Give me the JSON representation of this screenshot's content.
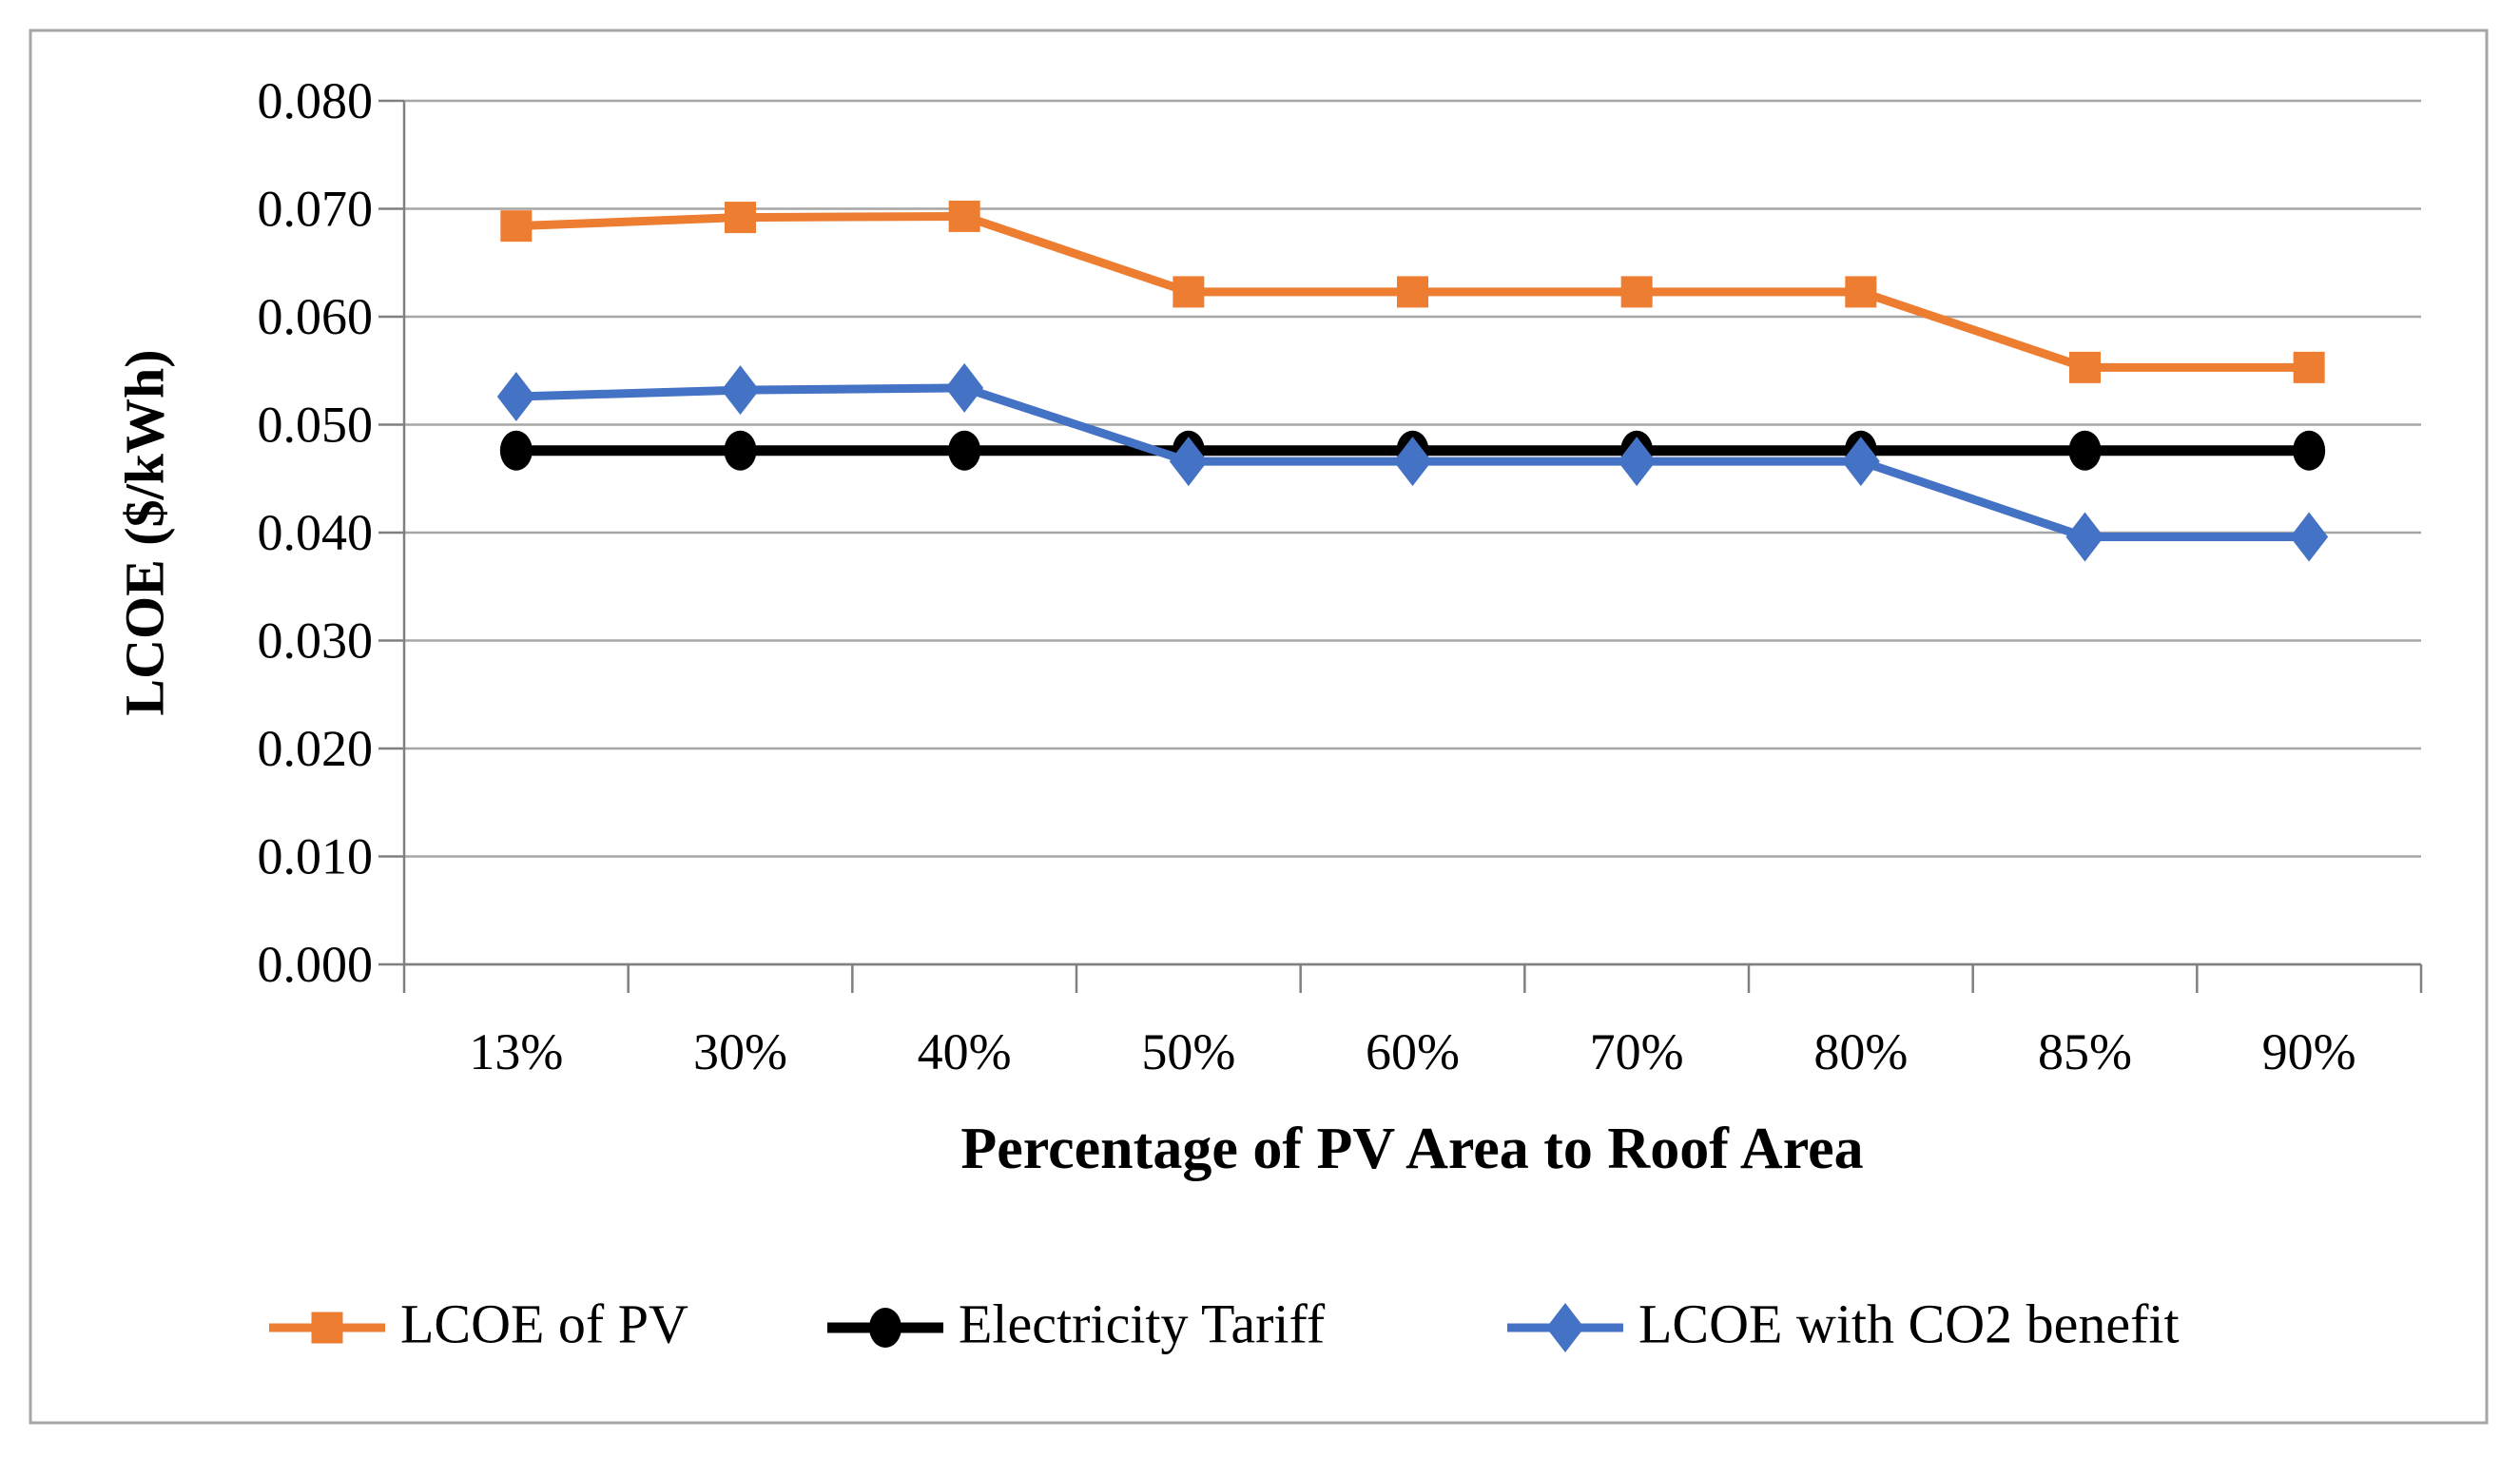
{
  "figure": {
    "background": "#ffffff",
    "border_color": "#a6a6a6",
    "gridline_color": "#a6a6a6",
    "axis_line_color": "#808080"
  },
  "chart_data": {
    "type": "line",
    "title": "",
    "xlabel": "Percentage of PV Area to Roof Area",
    "ylabel": "LCOE ($/kWh)",
    "categories": [
      "13%",
      "30%",
      "40%",
      "50%",
      "60%",
      "70%",
      "80%",
      "85%",
      "90%"
    ],
    "series": [
      {
        "name": "LCOE of PV",
        "color": "#ED7D31",
        "marker": "square",
        "line_width": 9,
        "values": [
          0.0684,
          0.0692,
          0.0693,
          0.0623,
          0.0623,
          0.0623,
          0.0623,
          0.0553,
          0.0553
        ]
      },
      {
        "name": "Electricity Tariff",
        "color": "#000000",
        "marker": "circle",
        "line_width": 11,
        "values": [
          0.0476,
          0.0476,
          0.0476,
          0.0476,
          0.0476,
          0.0476,
          0.0476,
          0.0476,
          0.0476
        ]
      },
      {
        "name": "LCOE with CO2 benefit",
        "color": "#4472C4",
        "marker": "diamond",
        "line_width": 9,
        "values": [
          0.0526,
          0.0532,
          0.0534,
          0.0466,
          0.0466,
          0.0466,
          0.0466,
          0.0396,
          0.0396
        ]
      }
    ],
    "ylim": [
      0.0,
      0.08
    ],
    "ytick_step": 0.01,
    "ytick_labels": [
      "0.000",
      "0.010",
      "0.020",
      "0.030",
      "0.040",
      "0.050",
      "0.060",
      "0.070",
      "0.080"
    ],
    "grid": true,
    "legend_position": "bottom"
  }
}
